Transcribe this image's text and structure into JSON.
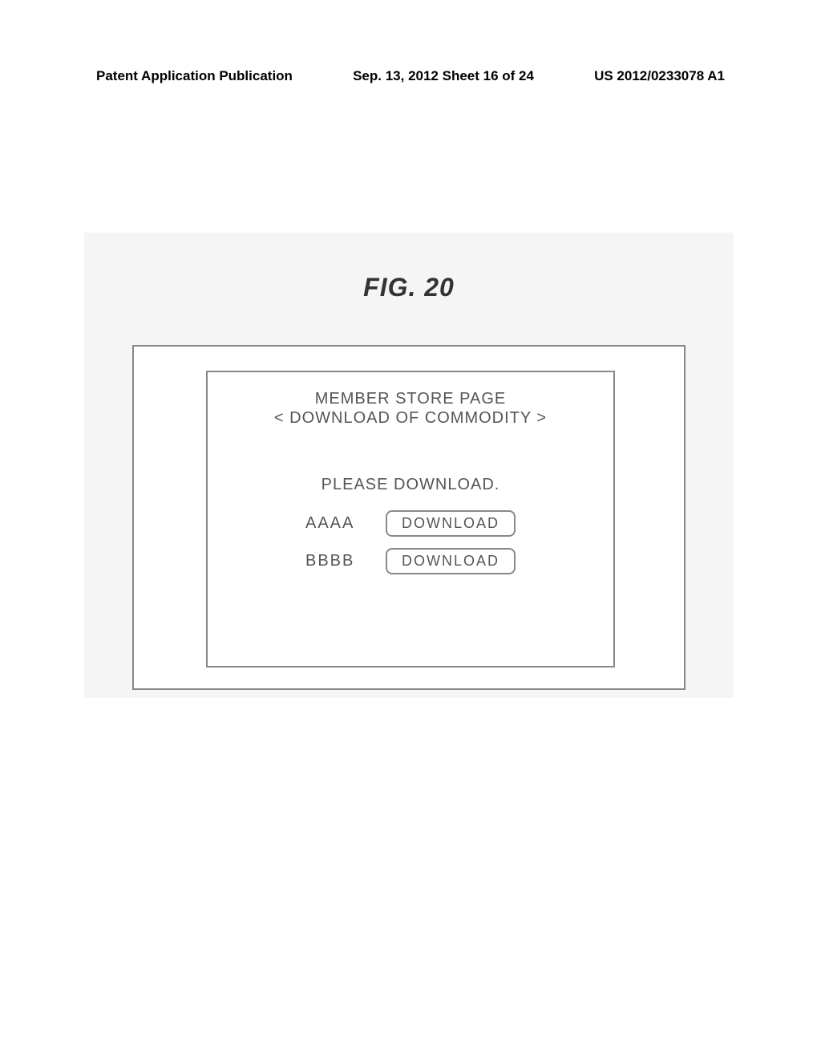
{
  "header": {
    "left": "Patent Application Publication",
    "center": "Sep. 13, 2012  Sheet 16 of 24",
    "right": "US 2012/0233078 A1"
  },
  "figure": {
    "label": "FIG. 20",
    "panel": {
      "title": "MEMBER STORE PAGE",
      "subtitle": "< DOWNLOAD OF COMMODITY >",
      "instruction": "PLEASE DOWNLOAD.",
      "items": [
        {
          "name": "AAAA",
          "button": "DOWNLOAD"
        },
        {
          "name": "BBBB",
          "button": "DOWNLOAD"
        }
      ]
    }
  },
  "colors": {
    "background": "#ffffff",
    "figure_bg": "#f5f5f5",
    "border": "#888888",
    "text": "#555555",
    "header_text": "#000000"
  }
}
